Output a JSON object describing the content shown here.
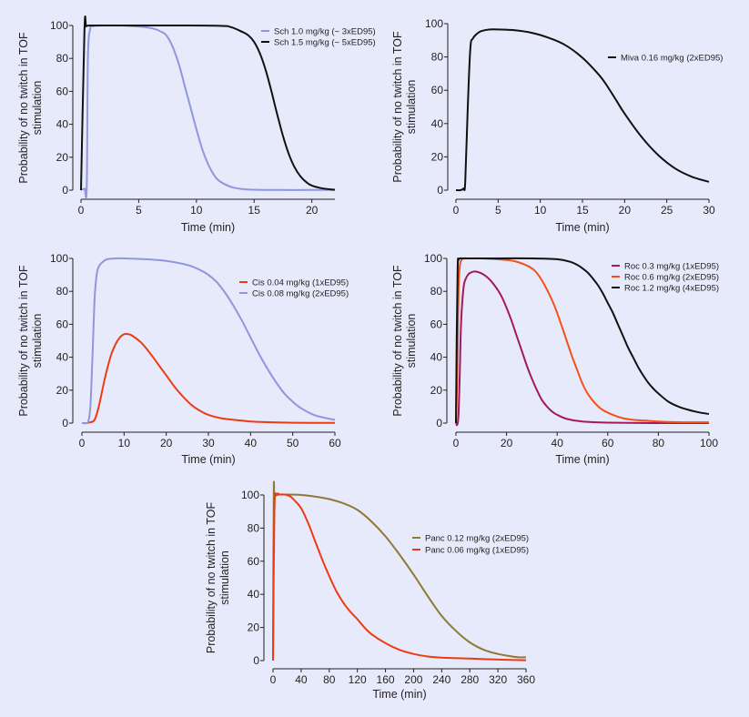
{
  "chart_data": [
    {
      "type": "line",
      "id": "sch",
      "title": "",
      "xlabel": "Time (min)",
      "ylabel": [
        "Probability of no twitch in TOF",
        "stimulation"
      ],
      "xlim": [
        0,
        22
      ],
      "ylim": [
        0,
        100
      ],
      "xticks": [
        0,
        5,
        10,
        15,
        20
      ],
      "yticks": [
        0,
        20,
        40,
        60,
        80,
        100
      ],
      "grid": false,
      "legend_position": "top-right",
      "series": [
        {
          "name": "Sch 1.0 mg/kg (~ 3xED95)",
          "color": "#8f96de",
          "x": [
            0,
            0.3,
            0.5,
            0.6,
            0.8,
            1,
            2,
            4,
            6,
            7,
            7.5,
            8,
            8.5,
            9,
            9.5,
            10,
            10.5,
            11,
            11.5,
            12,
            13,
            14,
            15,
            17,
            20,
            22
          ],
          "y": [
            0,
            1,
            2,
            80,
            98,
            99.5,
            100,
            99.8,
            98.5,
            96,
            93,
            86,
            76,
            63,
            50,
            37,
            25,
            16,
            9.5,
            5.5,
            2,
            0.7,
            0.3,
            0.1,
            0.1,
            0.1
          ]
        },
        {
          "name": "Sch 1.5 mg/kg (~ 5xED95)",
          "color": "#111111",
          "x": [
            0,
            0.3,
            0.45,
            0.7,
            1,
            3,
            8,
            12,
            13,
            14,
            14.5,
            15,
            15.5,
            16,
            16.5,
            17,
            17.5,
            18,
            18.5,
            19,
            19.5,
            20,
            21,
            22
          ],
          "y": [
            0,
            97,
            99.5,
            100,
            100,
            100,
            100,
            99.8,
            99,
            96,
            94,
            90,
            83,
            73,
            60,
            46,
            33,
            22,
            14,
            8.5,
            5,
            2.8,
            1,
            0.3
          ]
        }
      ]
    },
    {
      "type": "line",
      "id": "miva",
      "title": "",
      "xlabel": "Time (min)",
      "ylabel": [
        "Probability of no twitch in TOF",
        "stimulation"
      ],
      "xlim": [
        0,
        30
      ],
      "ylim": [
        0,
        100
      ],
      "xticks": [
        0,
        5,
        10,
        15,
        20,
        25,
        30
      ],
      "yticks": [
        0,
        20,
        40,
        60,
        80,
        100
      ],
      "grid": false,
      "legend_position": "right",
      "series": [
        {
          "name": "Miva 0.16 mg/kg (2xED95)",
          "color": "#111111",
          "x": [
            0,
            0.5,
            0.9,
            1.1,
            1.4,
            1.7,
            2,
            2.5,
            3,
            4,
            5,
            7,
            9,
            11,
            13,
            15,
            17,
            18,
            19,
            20,
            22,
            24,
            26,
            28,
            30
          ],
          "y": [
            0,
            0,
            1,
            5,
            50,
            85,
            91,
            94,
            95.5,
            96.5,
            96.5,
            96,
            94.5,
            91.5,
            87,
            79.5,
            69,
            62,
            54,
            46,
            32,
            21,
            13,
            8,
            5
          ]
        }
      ]
    },
    {
      "type": "line",
      "id": "cis",
      "title": "",
      "xlabel": "Time (min)",
      "ylabel": [
        "Probability of no twitch in TOF",
        "stimulation"
      ],
      "xlim": [
        0,
        60
      ],
      "ylim": [
        0,
        100
      ],
      "xticks": [
        0,
        10,
        20,
        30,
        40,
        50,
        60
      ],
      "yticks": [
        0,
        20,
        40,
        60,
        80,
        100
      ],
      "grid": false,
      "legend_position": "top-right",
      "series": [
        {
          "name": "Cis 0.04 mg/kg (1xED95)",
          "color": "#ee3a12",
          "x": [
            0,
            1,
            2,
            3,
            4,
            5,
            6,
            7,
            8,
            9,
            10,
            11,
            12,
            14,
            16,
            18,
            20,
            22,
            24,
            26,
            28,
            30,
            33,
            36,
            40,
            45,
            50,
            60
          ],
          "y": [
            0,
            0,
            0.5,
            2,
            10,
            22,
            33,
            42,
            48,
            52,
            54,
            54,
            53,
            49,
            43,
            36,
            29,
            22,
            16,
            11,
            7.5,
            5,
            3,
            2,
            1,
            0.5,
            0.2,
            0.1
          ]
        },
        {
          "name": "Cis 0.08 mg/kg (2xED95)",
          "color": "#8f96de",
          "x": [
            0,
            1,
            1.5,
            2,
            2.5,
            3,
            3.5,
            4,
            5,
            6,
            8,
            10,
            15,
            20,
            25,
            28,
            30,
            32,
            34,
            36,
            38,
            40,
            42,
            44,
            46,
            48,
            50,
            52,
            55,
            58,
            60
          ],
          "y": [
            0,
            0,
            1,
            10,
            40,
            75,
            90,
            95,
            98,
            99.5,
            100,
            100,
            99.5,
            98.5,
            96,
            93,
            90,
            85.5,
            79,
            71,
            62,
            52,
            42,
            33,
            25,
            18,
            13,
            9,
            5,
            3,
            2
          ]
        }
      ]
    },
    {
      "type": "line",
      "id": "roc",
      "title": "",
      "xlabel": "Time (min)",
      "ylabel": [
        "Probability of no twitch in TOF",
        "stimulation"
      ],
      "xlim": [
        0,
        100
      ],
      "ylim": [
        0,
        100
      ],
      "xticks": [
        0,
        20,
        40,
        60,
        80,
        100
      ],
      "yticks": [
        0,
        20,
        40,
        60,
        80,
        100
      ],
      "grid": false,
      "legend_position": "top-right",
      "series": [
        {
          "name": "Roc 0.3 mg/kg (1xED95)",
          "color": "#a3195b",
          "x": [
            0,
            0.5,
            1,
            1.5,
            2,
            3,
            4,
            5,
            6,
            7,
            8,
            10,
            12,
            14,
            16,
            18,
            20,
            22,
            24,
            26,
            28,
            30,
            32,
            34,
            36,
            38,
            40,
            44,
            50,
            60,
            80,
            100
          ],
          "y": [
            0,
            -1,
            5,
            30,
            60,
            82,
            88,
            90.5,
            91.5,
            92,
            92,
            91,
            89,
            86,
            82,
            77,
            70,
            62,
            53,
            44,
            35,
            27,
            20,
            14,
            10,
            7,
            5,
            2.5,
            1,
            0.3,
            0,
            0
          ]
        },
        {
          "name": "Roc 0.6 mg/kg (2xED95)",
          "color": "#f5501c",
          "x": [
            0,
            0.5,
            1,
            1.5,
            2,
            3,
            5,
            10,
            20,
            25,
            30,
            33,
            36,
            39,
            42,
            44,
            46,
            48,
            50,
            52,
            55,
            58,
            62,
            66,
            70,
            75,
            80,
            90,
            100
          ],
          "y": [
            0,
            30,
            80,
            95,
            98.5,
            100,
            100,
            100,
            99,
            97.5,
            94,
            89,
            81,
            71,
            58,
            49,
            40,
            32,
            24,
            18,
            12,
            8,
            5,
            3,
            2,
            1.5,
            1,
            0.5,
            0.5
          ]
        },
        {
          "name": "Roc 1.2 mg/kg (4xED95)",
          "color": "#111111",
          "x": [
            0,
            0.3,
            0.7,
            1,
            1.5,
            3,
            10,
            30,
            40,
            45,
            48,
            50,
            52,
            54,
            56,
            58,
            60,
            62,
            64,
            66,
            68,
            70,
            72,
            74,
            76,
            78,
            80,
            84,
            88,
            92,
            96,
            100
          ],
          "y": [
            0,
            50,
            95,
            99,
            100,
            100,
            100,
            100,
            99.5,
            98,
            96,
            94,
            91.5,
            88,
            84,
            79,
            73,
            67,
            60,
            53,
            46,
            40,
            34,
            29,
            24.5,
            21,
            18,
            13,
            10,
            8,
            6.5,
            5.5
          ]
        }
      ]
    },
    {
      "type": "line",
      "id": "panc",
      "title": "",
      "xlabel": "Time (min)",
      "ylabel": [
        "Probability of no twitch in TOF",
        "stimulation"
      ],
      "xlim": [
        0,
        360
      ],
      "ylim": [
        0,
        100
      ],
      "xticks": [
        0,
        40,
        80,
        120,
        160,
        200,
        240,
        280,
        320,
        360
      ],
      "yticks": [
        0,
        20,
        40,
        60,
        80,
        100
      ],
      "grid": false,
      "legend_position": "right",
      "series": [
        {
          "name": "Panc 0.12 mg/kg (2xED95)",
          "color": "#8f7a35",
          "x": [
            0,
            1,
            2,
            5,
            10,
            20,
            40,
            60,
            80,
            100,
            120,
            140,
            160,
            180,
            200,
            220,
            240,
            260,
            280,
            300,
            320,
            340,
            350,
            360
          ],
          "y": [
            0,
            100,
            100,
            100,
            100.3,
            100.3,
            100,
            99,
            97.5,
            95,
            91,
            84,
            75,
            64,
            52,
            39,
            27,
            18,
            11,
            6.5,
            4,
            2.5,
            2,
            2
          ]
        },
        {
          "name": "Panc 0.06 mg/kg (1xED95)",
          "color": "#ee3a12",
          "x": [
            0,
            2,
            5,
            10,
            15,
            20,
            25,
            30,
            40,
            50,
            60,
            70,
            80,
            90,
            100,
            110,
            120,
            130,
            140,
            160,
            180,
            200,
            220,
            240,
            280,
            320,
            360
          ],
          "y": [
            0,
            90,
            100,
            100.3,
            100.3,
            100,
            99,
            97,
            92,
            83,
            72,
            61,
            51,
            42,
            35,
            29.5,
            25,
            20,
            16,
            10.5,
            6.5,
            4,
            2.5,
            1.8,
            1.2,
            0.6,
            0.2
          ]
        }
      ]
    }
  ]
}
